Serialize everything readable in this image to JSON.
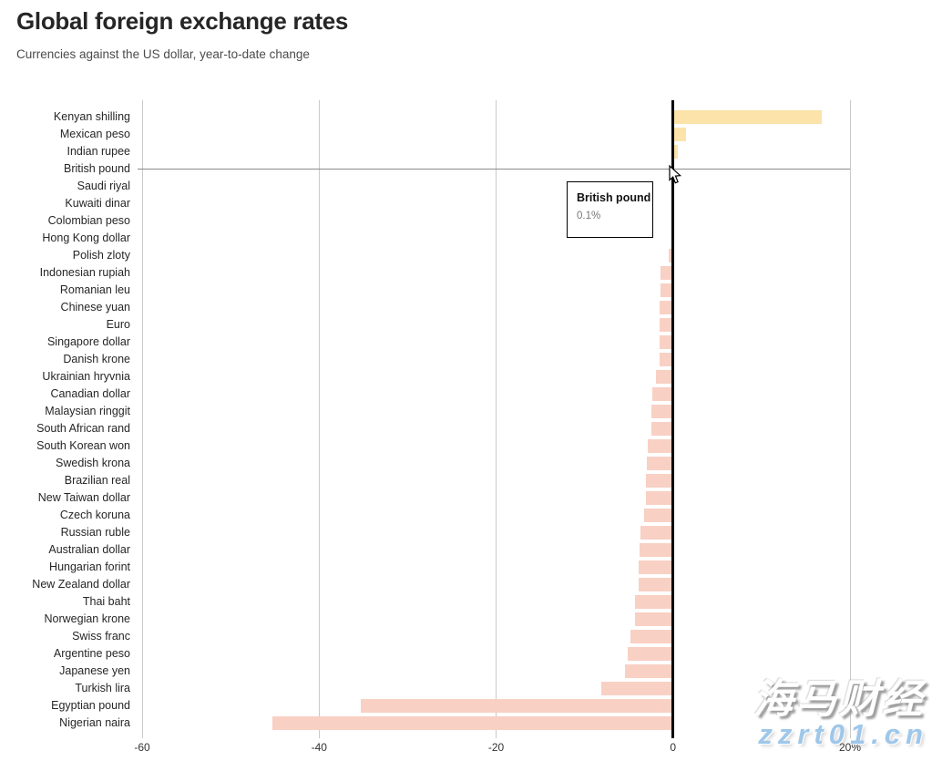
{
  "chart_data": {
    "type": "bar",
    "orientation": "horizontal",
    "title": "Global foreign exchange rates",
    "subtitle": "Currencies against the US dollar, year-to-date change",
    "unit": "%",
    "xlabel": "",
    "ylabel": "",
    "xlim": [
      -60,
      20
    ],
    "x_ticks": [
      -60,
      -40,
      -20,
      0,
      20
    ],
    "x_tick_labels": [
      "-60",
      "-40",
      "-20",
      "0",
      "20%"
    ],
    "grid": true,
    "legend": false,
    "categories": [
      "Kenyan shilling",
      "Mexican peso",
      "Indian rupee",
      "British pound",
      "Saudi riyal",
      "Kuwaiti dinar",
      "Colombian peso",
      "Hong Kong dollar",
      "Polish zloty",
      "Indonesian rupiah",
      "Romanian leu",
      "Chinese yuan",
      "Euro",
      "Singapore dollar",
      "Danish krone",
      "Ukrainian hryvnia",
      "Canadian dollar",
      "Malaysian ringgit",
      "South African rand",
      "South Korean won",
      "Swedish krona",
      "Brazilian real",
      "New Taiwan dollar",
      "Czech koruna",
      "Russian ruble",
      "Australian dollar",
      "Hungarian forint",
      "New Zealand dollar",
      "Thai baht",
      "Norwegian krone",
      "Swiss franc",
      "Argentine peso",
      "Japanese yen",
      "Turkish lira",
      "Egyptian pound",
      "Nigerian naira"
    ],
    "values": [
      16.8,
      1.5,
      0.5,
      0.1,
      0.0,
      0.0,
      -0.1,
      -0.2,
      -0.5,
      -1.4,
      -1.4,
      -1.5,
      -1.5,
      -1.5,
      -1.5,
      -1.9,
      -2.3,
      -2.4,
      -2.4,
      -2.9,
      -3.0,
      -3.1,
      -3.1,
      -3.3,
      -3.7,
      -3.8,
      -3.9,
      -3.9,
      -4.3,
      -4.3,
      -4.8,
      -5.1,
      -5.4,
      -8.1,
      -35.3,
      -45.3
    ],
    "bar_color_positive": "#fbe3a9",
    "bar_color_negative": "#f9d0c4",
    "grid_color": "#c9c9c9",
    "zero_line_color": "#000000",
    "hover": {
      "index": 3,
      "label": "British pound",
      "value_label": "0.1%"
    }
  },
  "watermark": {
    "line1": "海马财经",
    "line2": "zzrt01.cn",
    "line2_color": "#9ec7ea"
  }
}
